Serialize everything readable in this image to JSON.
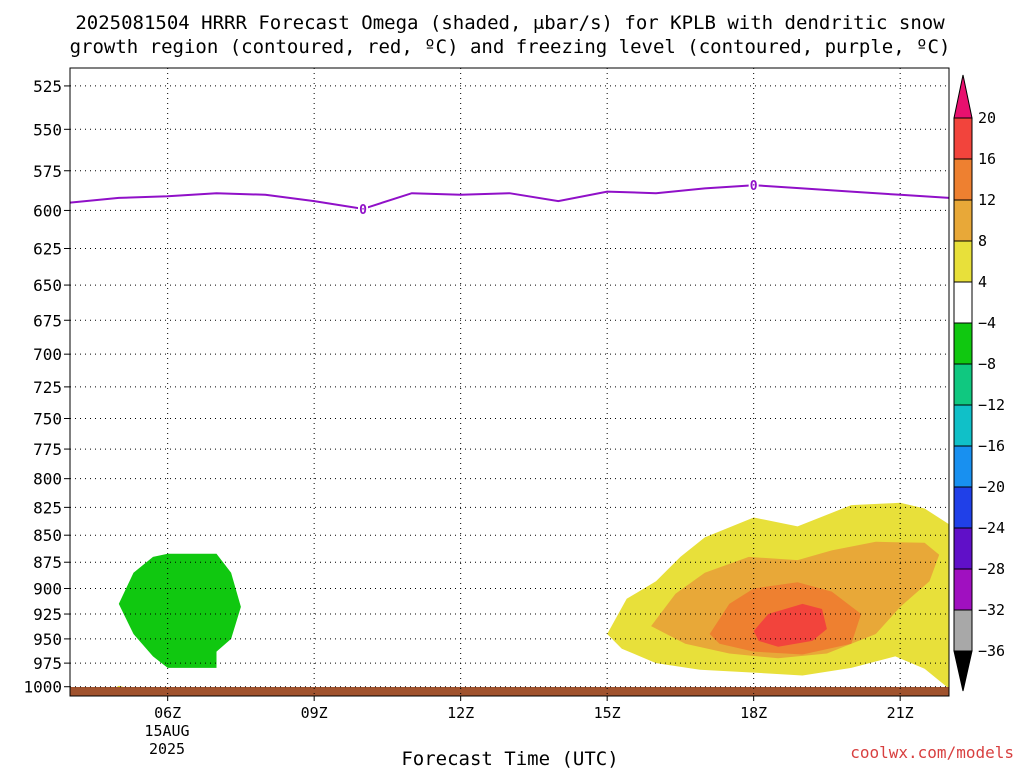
{
  "title_line1": "2025081504 HRRR Forecast Omega (shaded, μbar/s) for KPLB with dendritic snow",
  "title_line2": "growth region (contoured, red, ºC) and freezing level (contoured, purple, ºC)",
  "credit": "coolwx.com/models",
  "chart_data": {
    "type": "contour",
    "title": "2025081504 HRRR Forecast Omega (shaded, μbar/s) for KPLB with dendritic snow growth region (contoured, red, ºC) and freezing level (contoured, purple, ºC)",
    "xlabel": "Forecast Time (UTC)",
    "ylabel": "",
    "x_ticks": [
      "06Z",
      "09Z",
      "12Z",
      "15Z",
      "18Z",
      "21Z"
    ],
    "x_tick_hours": [
      6,
      9,
      12,
      15,
      18,
      21
    ],
    "x_date_label": [
      "15AUG",
      "2025"
    ],
    "xlim": [
      4,
      22
    ],
    "y_ticks": [
      525,
      550,
      575,
      600,
      625,
      650,
      675,
      700,
      725,
      750,
      775,
      800,
      825,
      850,
      875,
      900,
      925,
      950,
      975,
      1000
    ],
    "ylim": [
      1010,
      515
    ],
    "y_scale": "log-pressure",
    "grid": true,
    "colorbar": {
      "levels": [
        20,
        16,
        12,
        8,
        4,
        -4,
        -8,
        -12,
        -16,
        -20,
        -24,
        -28,
        -32,
        -36
      ],
      "labels": [
        "20",
        "16",
        "12",
        "8",
        "4",
        "−4",
        "−8",
        "−12",
        "−16",
        "−20",
        "−24",
        "−28",
        "−32",
        "−36"
      ],
      "colors_top_to_bottom": [
        "#e8106e",
        "#f2443c",
        "#ee8030",
        "#e8a838",
        "#e8e03a",
        "#ffffff",
        "#10c810",
        "#10c880",
        "#10c0c8",
        "#1890f0",
        "#2040e8",
        "#6010c8",
        "#a010c0",
        "#a8a8a8",
        "#000000"
      ]
    },
    "freezing_level": {
      "label": "0",
      "color": "#9010c8",
      "x": [
        4.0,
        5.0,
        6.0,
        7.0,
        8.0,
        9.0,
        10.0,
        11.0,
        12.0,
        13.0,
        14.0,
        15.0,
        16.0,
        17.0,
        18.0,
        19.0,
        20.0,
        21.0,
        22.0
      ],
      "p": [
        595,
        592,
        591,
        589,
        590,
        594,
        599,
        589,
        590,
        589,
        594,
        588,
        589,
        586,
        584,
        586,
        588,
        590,
        592
      ],
      "label_points": [
        [
          10.0,
          599
        ],
        [
          18.0,
          584
        ]
      ]
    },
    "omega_regions": [
      {
        "value": -4,
        "color": "#10c810",
        "outline": [
          [
            6.0,
            867
          ],
          [
            7.0,
            867
          ],
          [
            7.3,
            885
          ],
          [
            7.5,
            918
          ],
          [
            7.3,
            950
          ],
          [
            7.0,
            963
          ],
          [
            7.0,
            980
          ],
          [
            6.0,
            980
          ],
          [
            5.7,
            968
          ],
          [
            5.3,
            945
          ],
          [
            5.0,
            915
          ],
          [
            5.3,
            885
          ],
          [
            5.7,
            870
          ]
        ]
      },
      {
        "value": 4,
        "color": "#e8e03a",
        "outline": [
          [
            4.8,
            1005
          ],
          [
            5.0,
            999
          ],
          [
            5.3,
            1003
          ],
          [
            5.8,
            1010
          ],
          [
            4.8,
            1010
          ]
        ]
      },
      {
        "value": 4,
        "color": "#e8e03a",
        "outline": [
          [
            15.0,
            945
          ],
          [
            15.4,
            910
          ],
          [
            16.0,
            893
          ],
          [
            16.5,
            870
          ],
          [
            17.0,
            852
          ],
          [
            18.0,
            834
          ],
          [
            18.9,
            842
          ],
          [
            20.0,
            823
          ],
          [
            21.0,
            821
          ],
          [
            21.5,
            826
          ],
          [
            22.0,
            840
          ],
          [
            22.0,
            1002
          ],
          [
            21.5,
            981
          ],
          [
            20.9,
            968
          ],
          [
            20.0,
            980
          ],
          [
            19.0,
            988
          ],
          [
            18.0,
            985
          ],
          [
            16.9,
            982
          ],
          [
            16.0,
            975
          ],
          [
            15.3,
            960
          ]
        ]
      },
      {
        "value": 8,
        "color": "#e8a838",
        "outline": [
          [
            15.9,
            937
          ],
          [
            16.4,
            905
          ],
          [
            17.0,
            885
          ],
          [
            17.9,
            870
          ],
          [
            18.9,
            873
          ],
          [
            19.6,
            864
          ],
          [
            20.5,
            856
          ],
          [
            21.5,
            857
          ],
          [
            21.8,
            868
          ],
          [
            21.6,
            893
          ],
          [
            21.0,
            918
          ],
          [
            20.5,
            945
          ],
          [
            19.5,
            965
          ],
          [
            18.5,
            970
          ],
          [
            17.5,
            965
          ],
          [
            16.6,
            955
          ]
        ]
      },
      {
        "value": 12,
        "color": "#ee8030",
        "outline": [
          [
            17.1,
            945
          ],
          [
            17.5,
            915
          ],
          [
            18.0,
            900
          ],
          [
            18.9,
            894
          ],
          [
            19.6,
            903
          ],
          [
            20.2,
            925
          ],
          [
            20.0,
            955
          ],
          [
            19.0,
            966
          ],
          [
            18.0,
            963
          ],
          [
            17.3,
            955
          ]
        ]
      },
      {
        "value": 16,
        "color": "#f2443c",
        "outline": [
          [
            18.0,
            942
          ],
          [
            18.3,
            925
          ],
          [
            19.0,
            915
          ],
          [
            19.4,
            920
          ],
          [
            19.5,
            940
          ],
          [
            19.2,
            952
          ],
          [
            18.5,
            958
          ],
          [
            18.1,
            952
          ]
        ]
      }
    ],
    "terrain": {
      "color": "#a0522d",
      "p_top": 1005
    }
  }
}
